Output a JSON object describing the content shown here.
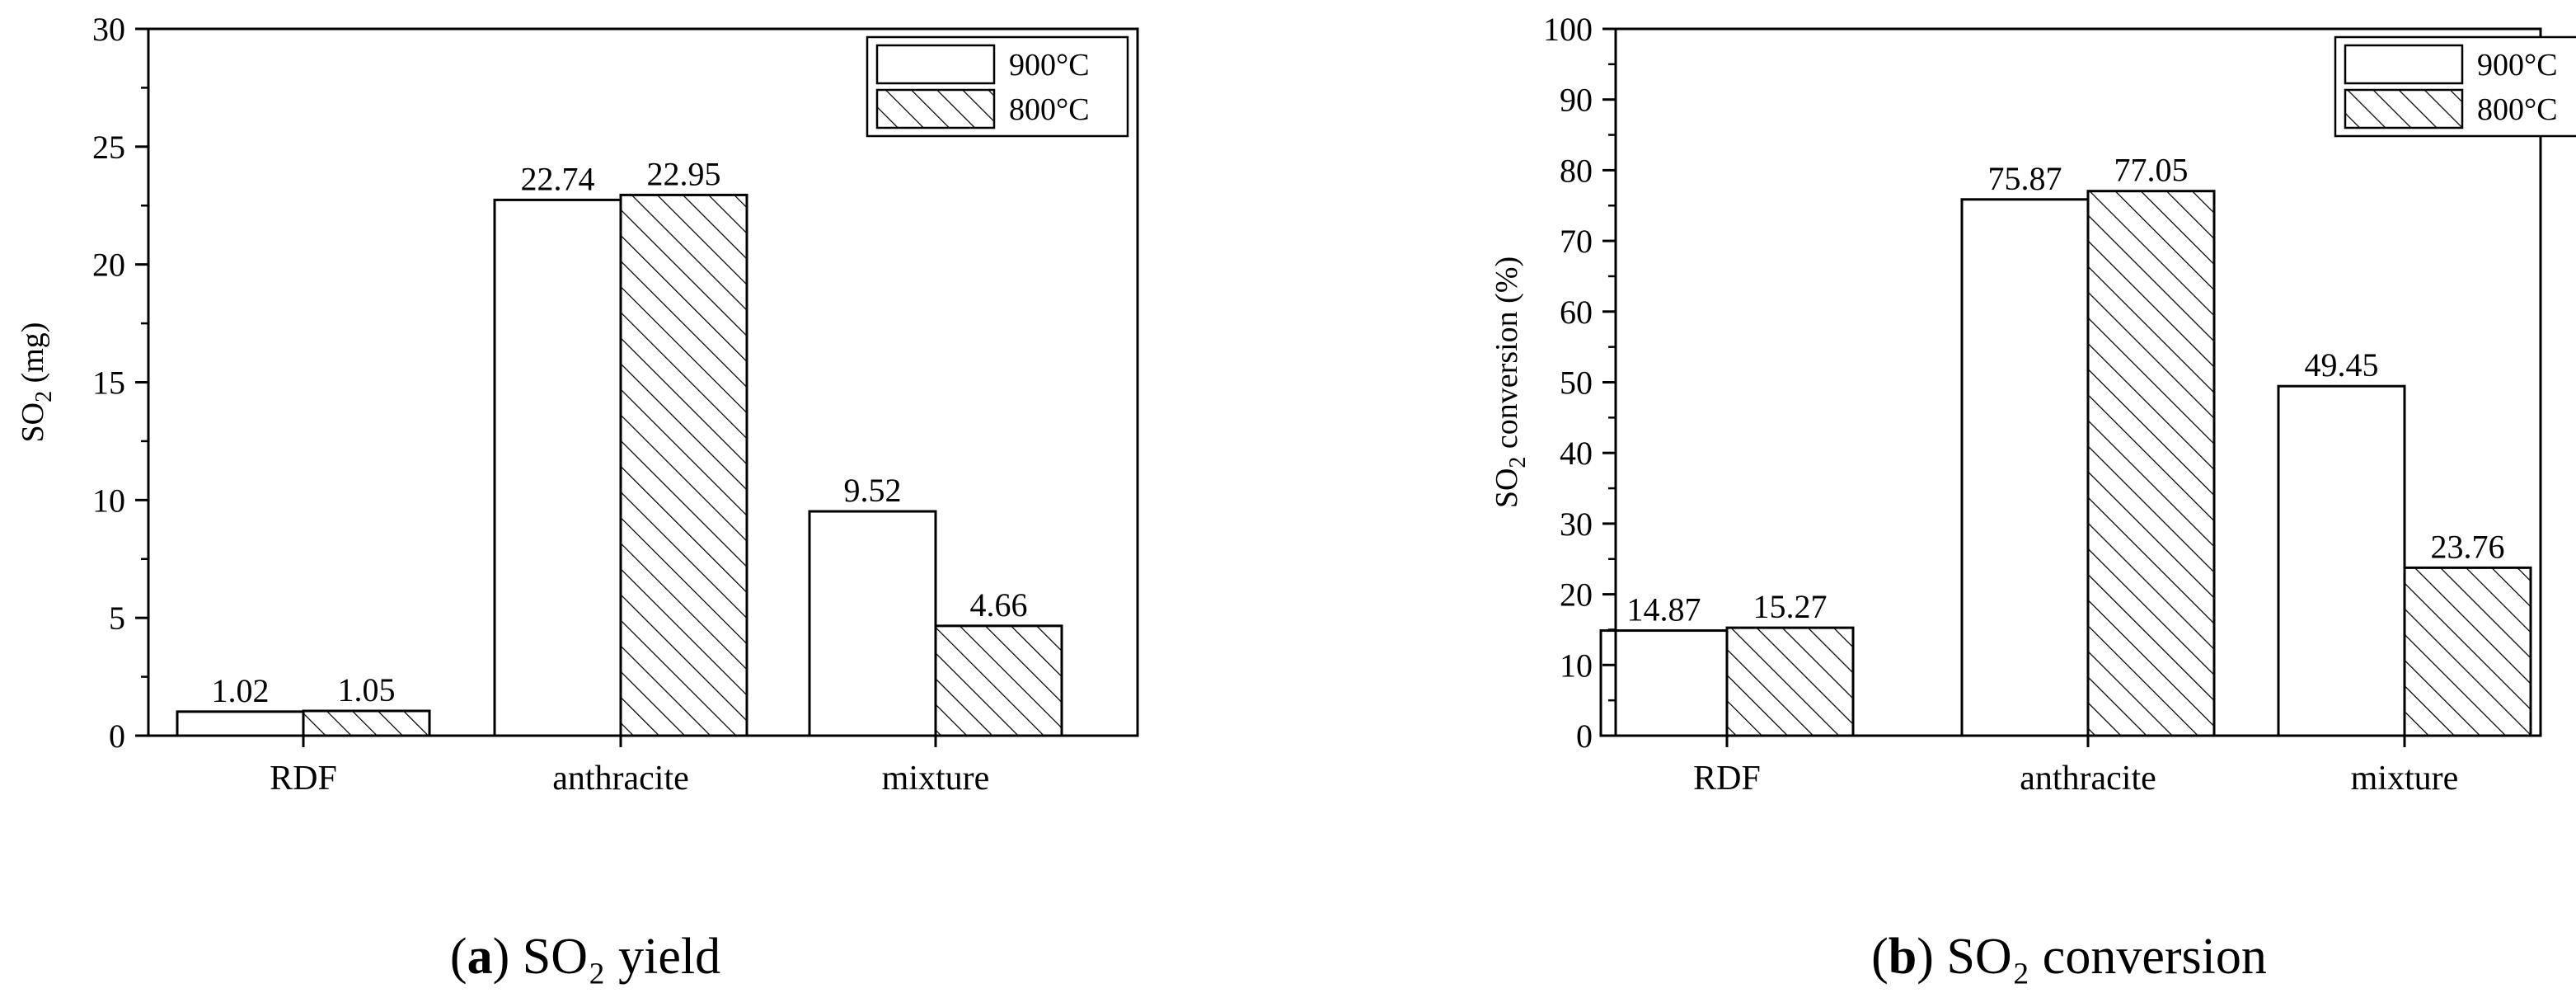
{
  "chart_data": [
    {
      "type": "bar",
      "caption_letter": "a",
      "caption_text": "SO₂ yield",
      "ylabel_main": "SO",
      "ylabel_sub": "2",
      "ylabel_rest": " (mg)",
      "ylim": [
        0,
        30
      ],
      "yticks": [
        0,
        5,
        10,
        15,
        20,
        25,
        30
      ],
      "categories": [
        "RDF",
        "anthracite",
        "mixture"
      ],
      "legend_position": "top-right",
      "series": [
        {
          "name": "900°C",
          "pattern": "none",
          "values": [
            1.02,
            22.74,
            9.52
          ],
          "labels": [
            "1.02",
            "22.74",
            "9.52"
          ]
        },
        {
          "name": "800°C",
          "pattern": "hatch",
          "values": [
            1.05,
            22.95,
            4.66
          ],
          "labels": [
            "1.05",
            "22.95",
            "4.66"
          ]
        }
      ]
    },
    {
      "type": "bar",
      "caption_letter": "b",
      "caption_text": "SO₂ conversion",
      "ylabel_main": "SO",
      "ylabel_sub": "2",
      "ylabel_rest": " conversion (%)",
      "ylim": [
        0,
        100
      ],
      "yticks": [
        0,
        10,
        20,
        30,
        40,
        50,
        60,
        70,
        80,
        90,
        100
      ],
      "categories": [
        "RDF",
        "anthracite",
        "mixture"
      ],
      "legend_position": "top-right",
      "series": [
        {
          "name": "900°C",
          "pattern": "none",
          "values": [
            14.87,
            75.87,
            49.45
          ],
          "labels": [
            "14.87",
            "75.87",
            "49.45"
          ]
        },
        {
          "name": "800°C",
          "pattern": "hatch",
          "values": [
            15.27,
            77.05,
            23.76
          ],
          "labels": [
            "15.27",
            "77.05",
            "23.76"
          ]
        }
      ]
    }
  ]
}
